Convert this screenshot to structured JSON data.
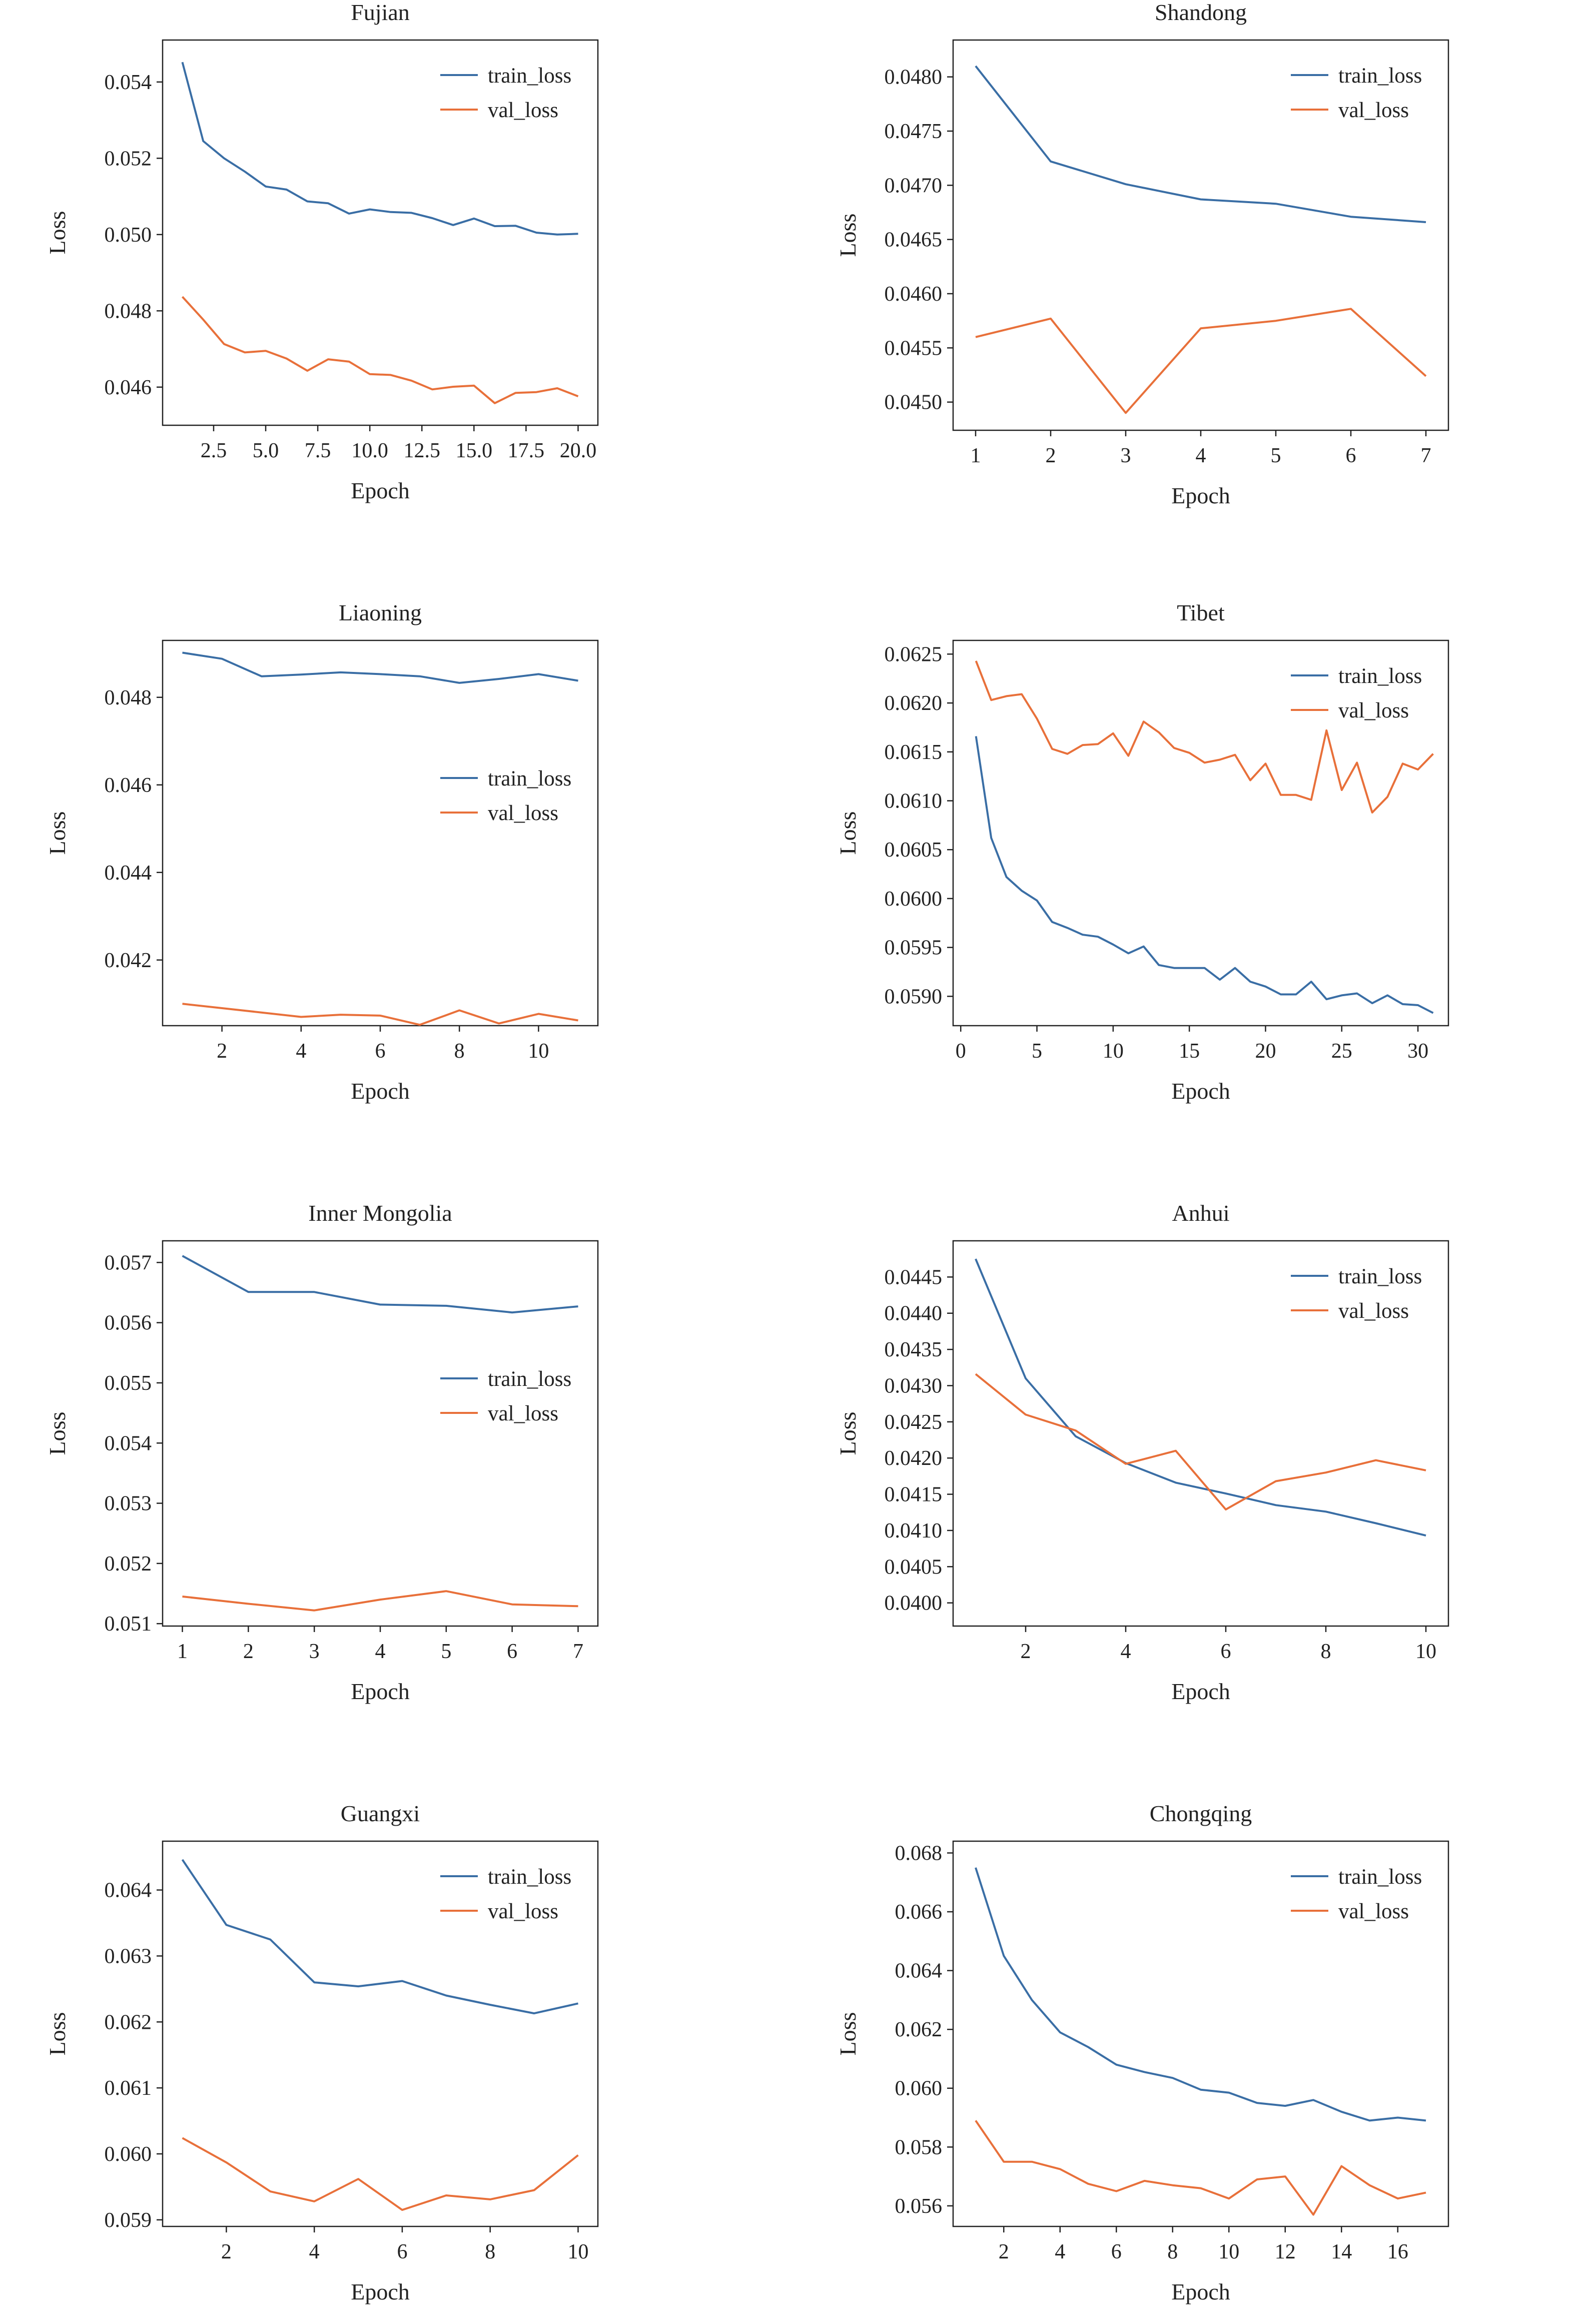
{
  "colors": {
    "train": "#3a6ea5",
    "val": "#e8703a",
    "axis": "#222222"
  },
  "chart_data": [
    {
      "type": "line",
      "title": "Fujian",
      "xlabel": "Epoch",
      "ylabel": "Loss",
      "xlim": [
        0.05,
        20.95
      ],
      "ylim": [
        0.045,
        0.0551
      ],
      "xticks": [
        2.5,
        5.0,
        7.5,
        10.0,
        12.5,
        15.0,
        17.5,
        20.0
      ],
      "xtick_labels": [
        "2.5",
        "5.0",
        "7.5",
        "10.0",
        "12.5",
        "15.0",
        "17.5",
        "20.0"
      ],
      "yticks": [
        0.046,
        0.048,
        0.05,
        0.052,
        0.054
      ],
      "ytick_labels": [
        "0.046",
        "0.048",
        "0.050",
        "0.052",
        "0.054"
      ],
      "legend_position": "upper right",
      "x": [
        1,
        2,
        3,
        4,
        5,
        6,
        7,
        8,
        9,
        10,
        11,
        12,
        13,
        14,
        15,
        16,
        17,
        18,
        19,
        20
      ],
      "series": [
        {
          "name": "train_loss",
          "values": [
            0.05452,
            0.05245,
            0.052,
            0.05165,
            0.05126,
            0.05118,
            0.05087,
            0.05082,
            0.05055,
            0.05066,
            0.05059,
            0.05057,
            0.05043,
            0.05025,
            0.05042,
            0.05022,
            0.05023,
            0.05005,
            0.05,
            0.05002
          ]
        },
        {
          "name": "val_loss",
          "values": [
            0.04837,
            0.04777,
            0.04713,
            0.04691,
            0.04695,
            0.04675,
            0.04643,
            0.04673,
            0.04667,
            0.04634,
            0.04632,
            0.04617,
            0.04594,
            0.04601,
            0.04604,
            0.04558,
            0.04585,
            0.04587,
            0.04597,
            0.04576
          ]
        }
      ]
    },
    {
      "type": "line",
      "title": "Shandong",
      "xlabel": "Epoch",
      "ylabel": "Loss",
      "xlim": [
        0.7,
        7.3
      ],
      "ylim": [
        0.04474,
        0.04834
      ],
      "xticks": [
        1,
        2,
        3,
        4,
        5,
        6,
        7
      ],
      "xtick_labels": [
        "1",
        "2",
        "3",
        "4",
        "5",
        "6",
        "7"
      ],
      "yticks": [
        0.045,
        0.0455,
        0.046,
        0.0465,
        0.047,
        0.0475,
        0.048
      ],
      "ytick_labels": [
        "0.0450",
        "0.0455",
        "0.0460",
        "0.0465",
        "0.0470",
        "0.0475",
        "0.0480"
      ],
      "legend_position": "upper right",
      "x": [
        1,
        2,
        3,
        4,
        5,
        6,
        7
      ],
      "series": [
        {
          "name": "train_loss",
          "values": [
            0.0481,
            0.04722,
            0.04701,
            0.04687,
            0.04683,
            0.04671,
            0.04666
          ]
        },
        {
          "name": "val_loss",
          "values": [
            0.0456,
            0.04577,
            0.0449,
            0.04568,
            0.04575,
            0.04586,
            0.04524
          ]
        }
      ]
    },
    {
      "type": "line",
      "title": "Liaoning",
      "xlabel": "Epoch",
      "ylabel": "Loss",
      "xlim": [
        0.5,
        11.5
      ],
      "ylim": [
        0.0405,
        0.0493
      ],
      "xticks": [
        2,
        4,
        6,
        8,
        10
      ],
      "xtick_labels": [
        "2",
        "4",
        "6",
        "8",
        "10"
      ],
      "yticks": [
        0.042,
        0.044,
        0.046,
        0.048
      ],
      "ytick_labels": [
        "0.042",
        "0.044",
        "0.046",
        "0.048"
      ],
      "legend_position": "center right",
      "x": [
        1,
        2,
        3,
        4,
        5,
        6,
        7,
        8,
        9,
        10,
        11
      ],
      "series": [
        {
          "name": "train_loss",
          "values": [
            0.04902,
            0.04888,
            0.04848,
            0.04852,
            0.04857,
            0.04853,
            0.04848,
            0.04833,
            0.04842,
            0.04853,
            0.04838
          ]
        },
        {
          "name": "val_loss",
          "values": [
            0.041,
            0.0409,
            0.0408,
            0.0407,
            0.04075,
            0.04073,
            0.04052,
            0.04085,
            0.04055,
            0.04077,
            0.04062
          ]
        }
      ]
    },
    {
      "type": "line",
      "title": "Tibet",
      "xlabel": "Epoch",
      "ylabel": "Loss",
      "xlim": [
        -0.5,
        32.0
      ],
      "ylim": [
        0.0587,
        0.06264
      ],
      "xticks": [
        0,
        5,
        10,
        15,
        20,
        25,
        30
      ],
      "xtick_labels": [
        "0",
        "5",
        "10",
        "15",
        "20",
        "25",
        "30"
      ],
      "yticks": [
        0.059,
        0.0595,
        0.06,
        0.0605,
        0.061,
        0.0615,
        0.062,
        0.0625
      ],
      "ytick_labels": [
        "0.0590",
        "0.0595",
        "0.0600",
        "0.0605",
        "0.0610",
        "0.0615",
        "0.0620",
        "0.0625"
      ],
      "legend_position": "upper right",
      "x": [
        1,
        2,
        3,
        4,
        5,
        6,
        7,
        8,
        9,
        10,
        11,
        12,
        13,
        14,
        15,
        16,
        17,
        18,
        19,
        20,
        21,
        22,
        23,
        24,
        25,
        26,
        27,
        28,
        29,
        30,
        31
      ],
      "series": [
        {
          "name": "train_loss",
          "values": [
            0.06166,
            0.06062,
            0.06022,
            0.06008,
            0.05998,
            0.05976,
            0.0597,
            0.05963,
            0.05961,
            0.05953,
            0.05944,
            0.05951,
            0.05932,
            0.05929,
            0.05929,
            0.05929,
            0.05917,
            0.05929,
            0.05915,
            0.0591,
            0.05902,
            0.05902,
            0.05915,
            0.05897,
            0.05901,
            0.05903,
            0.05893,
            0.05901,
            0.05892,
            0.05891,
            0.05883
          ]
        },
        {
          "name": "val_loss",
          "values": [
            0.06243,
            0.06203,
            0.06207,
            0.06209,
            0.06184,
            0.06153,
            0.06148,
            0.06157,
            0.06158,
            0.06169,
            0.06146,
            0.06181,
            0.0617,
            0.06154,
            0.06149,
            0.06139,
            0.06142,
            0.06147,
            0.06121,
            0.06138,
            0.06106,
            0.06106,
            0.06101,
            0.06172,
            0.06111,
            0.06139,
            0.06088,
            0.06104,
            0.06138,
            0.06132,
            0.06148
          ]
        }
      ]
    },
    {
      "type": "line",
      "title": "Inner Mongolia",
      "xlabel": "Epoch",
      "ylabel": "Loss",
      "xlim": [
        0.7,
        7.3
      ],
      "ylim": [
        0.05096,
        0.05736
      ],
      "xticks": [
        1,
        2,
        3,
        4,
        5,
        6,
        7
      ],
      "xtick_labels": [
        "1",
        "2",
        "3",
        "4",
        "5",
        "6",
        "7"
      ],
      "yticks": [
        0.051,
        0.052,
        0.053,
        0.054,
        0.055,
        0.056,
        0.057
      ],
      "ytick_labels": [
        "0.051",
        "0.052",
        "0.053",
        "0.054",
        "0.055",
        "0.056",
        "0.057"
      ],
      "legend_position": "center right",
      "x": [
        1,
        2,
        3,
        4,
        5,
        6,
        7
      ],
      "series": [
        {
          "name": "train_loss",
          "values": [
            0.05711,
            0.05651,
            0.05651,
            0.0563,
            0.05628,
            0.05617,
            0.05627
          ]
        },
        {
          "name": "val_loss",
          "values": [
            0.05145,
            0.05133,
            0.05122,
            0.0514,
            0.05154,
            0.05132,
            0.05129
          ]
        }
      ]
    },
    {
      "type": "line",
      "title": "Anhui",
      "xlabel": "Epoch",
      "ylabel": "Loss",
      "xlim": [
        0.55,
        10.45
      ],
      "ylim": [
        0.03968,
        0.045
      ],
      "xticks": [
        2,
        4,
        6,
        8,
        10
      ],
      "xtick_labels": [
        "2",
        "4",
        "6",
        "8",
        "10"
      ],
      "yticks": [
        0.04,
        0.0405,
        0.041,
        0.0415,
        0.042,
        0.0425,
        0.043,
        0.0435,
        0.044,
        0.0445
      ],
      "ytick_labels": [
        "0.0400",
        "0.0405",
        "0.0410",
        "0.0415",
        "0.0420",
        "0.0425",
        "0.0430",
        "0.0435",
        "0.0440",
        "0.0445"
      ],
      "legend_position": "upper right",
      "x": [
        1,
        2,
        3,
        4,
        5,
        6,
        7,
        8,
        9,
        10
      ],
      "series": [
        {
          "name": "train_loss",
          "values": [
            0.04475,
            0.0431,
            0.0423,
            0.04193,
            0.04166,
            0.04151,
            0.04135,
            0.04126,
            0.0411,
            0.04093
          ]
        },
        {
          "name": "val_loss",
          "values": [
            0.04316,
            0.0426,
            0.04238,
            0.04192,
            0.0421,
            0.04129,
            0.04168,
            0.0418,
            0.04197,
            0.04183
          ]
        }
      ]
    },
    {
      "type": "line",
      "title": "Guangxi",
      "xlabel": "Epoch",
      "ylabel": "Loss",
      "xlim": [
        0.55,
        10.45
      ],
      "ylim": [
        0.0589,
        0.06474
      ],
      "xticks": [
        2,
        4,
        6,
        8,
        10
      ],
      "xtick_labels": [
        "2",
        "4",
        "6",
        "8",
        "10"
      ],
      "yticks": [
        0.059,
        0.06,
        0.061,
        0.062,
        0.063,
        0.064
      ],
      "ytick_labels": [
        "0.059",
        "0.060",
        "0.061",
        "0.062",
        "0.063",
        "0.064"
      ],
      "legend_position": "upper right",
      "x": [
        1,
        2,
        3,
        4,
        5,
        6,
        7,
        8,
        9,
        10
      ],
      "series": [
        {
          "name": "train_loss",
          "values": [
            0.06446,
            0.06347,
            0.06325,
            0.0626,
            0.06254,
            0.06262,
            0.0624,
            0.06226,
            0.06213,
            0.06228
          ]
        },
        {
          "name": "val_loss",
          "values": [
            0.06024,
            0.05987,
            0.05943,
            0.05928,
            0.05962,
            0.05915,
            0.05937,
            0.05931,
            0.05945,
            0.05998
          ]
        }
      ]
    },
    {
      "type": "line",
      "title": "Chongqing",
      "xlabel": "Epoch",
      "ylabel": "Loss",
      "xlim": [
        0.2,
        17.8
      ],
      "ylim": [
        0.0553,
        0.0684
      ],
      "xticks": [
        2,
        4,
        6,
        8,
        10,
        12,
        14,
        16
      ],
      "xtick_labels": [
        "2",
        "4",
        "6",
        "8",
        "10",
        "12",
        "14",
        "16"
      ],
      "yticks": [
        0.056,
        0.058,
        0.06,
        0.062,
        0.064,
        0.066,
        0.068
      ],
      "ytick_labels": [
        "0.056",
        "0.058",
        "0.060",
        "0.062",
        "0.064",
        "0.066",
        "0.068"
      ],
      "legend_position": "upper right",
      "x": [
        1,
        2,
        3,
        4,
        5,
        6,
        7,
        8,
        9,
        10,
        11,
        12,
        13,
        14,
        15,
        16,
        17
      ],
      "series": [
        {
          "name": "train_loss",
          "values": [
            0.0675,
            0.0645,
            0.063,
            0.0619,
            0.0614,
            0.0608,
            0.06055,
            0.06035,
            0.05995,
            0.05985,
            0.0595,
            0.0594,
            0.0596,
            0.0592,
            0.0589,
            0.059,
            0.0589
          ]
        },
        {
          "name": "val_loss",
          "values": [
            0.0589,
            0.0575,
            0.0575,
            0.05725,
            0.05675,
            0.0565,
            0.05685,
            0.0567,
            0.0566,
            0.05625,
            0.0569,
            0.057,
            0.0557,
            0.05735,
            0.0567,
            0.05625,
            0.05645
          ]
        }
      ]
    }
  ]
}
